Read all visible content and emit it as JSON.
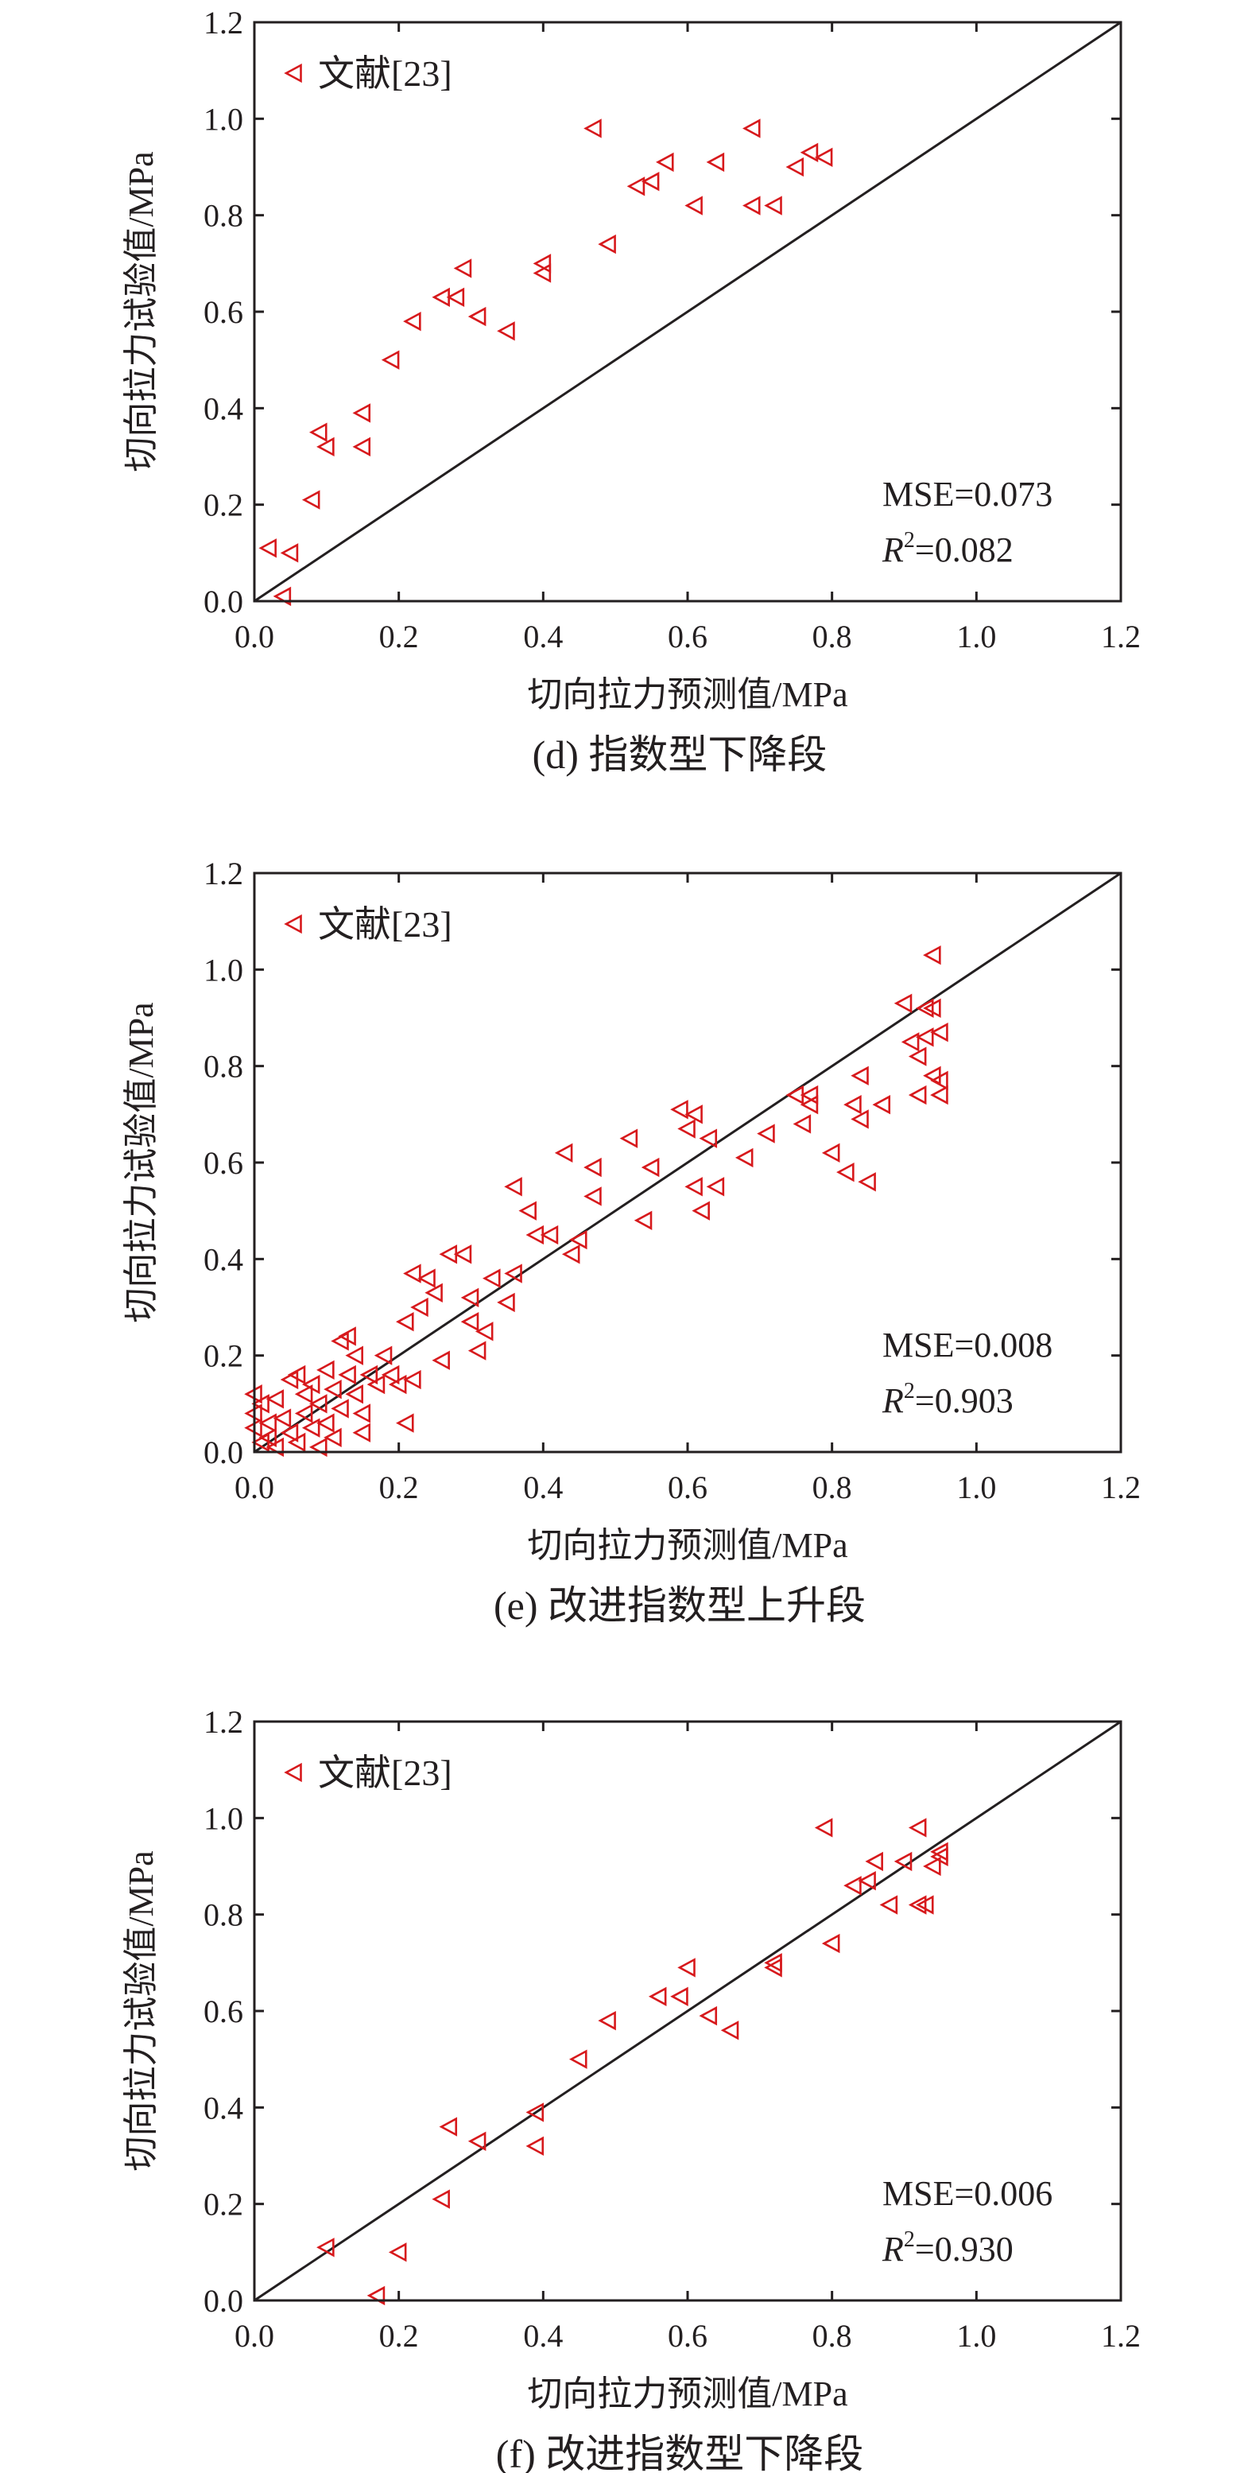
{
  "chart_data": [
    {
      "type": "scatter",
      "caption": "(d) 指数型下降段",
      "xlabel": "切向拉力预测值/MPa",
      "ylabel": "切向拉力试验值/MPa",
      "xlim": [
        0,
        1.2
      ],
      "ylim": [
        0,
        1.2
      ],
      "xticks": [
        "0.0",
        "0.2",
        "0.4",
        "0.6",
        "0.8",
        "1.0",
        "1.2"
      ],
      "yticks": [
        "0.0",
        "0.2",
        "0.4",
        "0.6",
        "0.8",
        "1.0",
        "1.2"
      ],
      "legend": {
        "label": "文献[23]",
        "position": "top-left"
      },
      "reference_line": "y = x",
      "stats": {
        "mse": "MSE=0.073",
        "r2_symbol": "R",
        "r2_sup": "2",
        "r2_value": "=0.082"
      },
      "series": [
        {
          "marker": "triangle-left",
          "color": "#d7191c",
          "points": [
            [
              0.02,
              0.11
            ],
            [
              0.04,
              0.01
            ],
            [
              0.05,
              0.1
            ],
            [
              0.08,
              0.21
            ],
            [
              0.09,
              0.35
            ],
            [
              0.1,
              0.32
            ],
            [
              0.15,
              0.32
            ],
            [
              0.15,
              0.39
            ],
            [
              0.19,
              0.5
            ],
            [
              0.22,
              0.58
            ],
            [
              0.26,
              0.63
            ],
            [
              0.28,
              0.63
            ],
            [
              0.29,
              0.69
            ],
            [
              0.31,
              0.59
            ],
            [
              0.35,
              0.56
            ],
            [
              0.4,
              0.68
            ],
            [
              0.4,
              0.7
            ],
            [
              0.47,
              0.98
            ],
            [
              0.49,
              0.74
            ],
            [
              0.53,
              0.86
            ],
            [
              0.55,
              0.87
            ],
            [
              0.57,
              0.91
            ],
            [
              0.61,
              0.82
            ],
            [
              0.64,
              0.91
            ],
            [
              0.69,
              0.82
            ],
            [
              0.69,
              0.98
            ],
            [
              0.72,
              0.82
            ],
            [
              0.75,
              0.9
            ],
            [
              0.77,
              0.93
            ],
            [
              0.79,
              0.92
            ]
          ]
        }
      ]
    },
    {
      "type": "scatter",
      "caption": "(e) 改进指数型上升段",
      "xlabel": "切向拉力预测值/MPa",
      "ylabel": "切向拉力试验值/MPa",
      "xlim": [
        0,
        1.2
      ],
      "ylim": [
        0,
        1.2
      ],
      "xticks": [
        "0.0",
        "0.2",
        "0.4",
        "0.6",
        "0.8",
        "1.0",
        "1.2"
      ],
      "yticks": [
        "0.0",
        "0.2",
        "0.4",
        "0.6",
        "0.8",
        "1.0",
        "1.2"
      ],
      "legend": {
        "label": "文献[23]",
        "position": "top-left"
      },
      "reference_line": "y = x",
      "stats": {
        "mse": "MSE=0.008",
        "r2_symbol": "R",
        "r2_sup": "2",
        "r2_value": "=0.903"
      },
      "series": [
        {
          "marker": "triangle-left",
          "color": "#d7191c",
          "points": [
            [
              0.0,
              0.12
            ],
            [
              0.0,
              0.08
            ],
            [
              0.0,
              0.05
            ],
            [
              0.01,
              0.02
            ],
            [
              0.01,
              0.1
            ],
            [
              0.02,
              0.06
            ],
            [
              0.02,
              0.03
            ],
            [
              0.03,
              0.11
            ],
            [
              0.03,
              0.01
            ],
            [
              0.04,
              0.07
            ],
            [
              0.05,
              0.04
            ],
            [
              0.05,
              0.15
            ],
            [
              0.06,
              0.16
            ],
            [
              0.06,
              0.02
            ],
            [
              0.07,
              0.08
            ],
            [
              0.07,
              0.12
            ],
            [
              0.08,
              0.05
            ],
            [
              0.08,
              0.14
            ],
            [
              0.09,
              0.1
            ],
            [
              0.09,
              0.01
            ],
            [
              0.1,
              0.17
            ],
            [
              0.1,
              0.06
            ],
            [
              0.11,
              0.03
            ],
            [
              0.11,
              0.13
            ],
            [
              0.12,
              0.09
            ],
            [
              0.12,
              0.23
            ],
            [
              0.13,
              0.24
            ],
            [
              0.13,
              0.16
            ],
            [
              0.14,
              0.2
            ],
            [
              0.14,
              0.12
            ],
            [
              0.15,
              0.04
            ],
            [
              0.15,
              0.08
            ],
            [
              0.16,
              0.16
            ],
            [
              0.17,
              0.14
            ],
            [
              0.18,
              0.2
            ],
            [
              0.19,
              0.16
            ],
            [
              0.2,
              0.14
            ],
            [
              0.21,
              0.27
            ],
            [
              0.21,
              0.06
            ],
            [
              0.22,
              0.37
            ],
            [
              0.22,
              0.15
            ],
            [
              0.23,
              0.3
            ],
            [
              0.24,
              0.36
            ],
            [
              0.25,
              0.33
            ],
            [
              0.26,
              0.19
            ],
            [
              0.27,
              0.41
            ],
            [
              0.29,
              0.41
            ],
            [
              0.3,
              0.27
            ],
            [
              0.3,
              0.32
            ],
            [
              0.31,
              0.21
            ],
            [
              0.32,
              0.25
            ],
            [
              0.33,
              0.36
            ],
            [
              0.35,
              0.31
            ],
            [
              0.36,
              0.37
            ],
            [
              0.36,
              0.55
            ],
            [
              0.38,
              0.5
            ],
            [
              0.39,
              0.45
            ],
            [
              0.41,
              0.45
            ],
            [
              0.43,
              0.62
            ],
            [
              0.44,
              0.41
            ],
            [
              0.45,
              0.44
            ],
            [
              0.47,
              0.53
            ],
            [
              0.47,
              0.59
            ],
            [
              0.52,
              0.65
            ],
            [
              0.54,
              0.48
            ],
            [
              0.55,
              0.59
            ],
            [
              0.59,
              0.71
            ],
            [
              0.6,
              0.67
            ],
            [
              0.61,
              0.55
            ],
            [
              0.61,
              0.7
            ],
            [
              0.62,
              0.5
            ],
            [
              0.63,
              0.65
            ],
            [
              0.64,
              0.55
            ],
            [
              0.68,
              0.61
            ],
            [
              0.71,
              0.66
            ],
            [
              0.75,
              0.74
            ],
            [
              0.76,
              0.68
            ],
            [
              0.77,
              0.72
            ],
            [
              0.77,
              0.74
            ],
            [
              0.8,
              0.62
            ],
            [
              0.82,
              0.58
            ],
            [
              0.83,
              0.72
            ],
            [
              0.84,
              0.69
            ],
            [
              0.84,
              0.78
            ],
            [
              0.85,
              0.56
            ],
            [
              0.87,
              0.72
            ],
            [
              0.9,
              0.93
            ],
            [
              0.91,
              0.85
            ],
            [
              0.92,
              0.74
            ],
            [
              0.92,
              0.82
            ],
            [
              0.93,
              0.86
            ],
            [
              0.93,
              0.92
            ],
            [
              0.94,
              0.92
            ],
            [
              0.94,
              1.03
            ],
            [
              0.94,
              0.78
            ],
            [
              0.95,
              0.87
            ],
            [
              0.95,
              0.74
            ],
            [
              0.95,
              0.77
            ]
          ]
        }
      ]
    },
    {
      "type": "scatter",
      "caption": "(f) 改进指数型下降段",
      "xlabel": "切向拉力预测值/MPa",
      "ylabel": "切向拉力试验值/MPa",
      "xlim": [
        0,
        1.2
      ],
      "ylim": [
        0,
        1.2
      ],
      "xticks": [
        "0.0",
        "0.2",
        "0.4",
        "0.6",
        "0.8",
        "1.0",
        "1.2"
      ],
      "yticks": [
        "0.0",
        "0.2",
        "0.4",
        "0.6",
        "0.8",
        "1.0",
        "1.2"
      ],
      "legend": {
        "label": "文献[23]",
        "position": "top-left"
      },
      "reference_line": "y = x",
      "stats": {
        "mse": "MSE=0.006",
        "r2_symbol": "R",
        "r2_sup": "2",
        "r2_value": "=0.930"
      },
      "series": [
        {
          "marker": "triangle-left",
          "color": "#d7191c",
          "points": [
            [
              0.1,
              0.11
            ],
            [
              0.17,
              0.01
            ],
            [
              0.2,
              0.1
            ],
            [
              0.26,
              0.21
            ],
            [
              0.27,
              0.36
            ],
            [
              0.31,
              0.33
            ],
            [
              0.39,
              0.32
            ],
            [
              0.39,
              0.39
            ],
            [
              0.45,
              0.5
            ],
            [
              0.49,
              0.58
            ],
            [
              0.56,
              0.63
            ],
            [
              0.59,
              0.63
            ],
            [
              0.6,
              0.69
            ],
            [
              0.63,
              0.59
            ],
            [
              0.66,
              0.56
            ],
            [
              0.72,
              0.69
            ],
            [
              0.72,
              0.7
            ],
            [
              0.79,
              0.98
            ],
            [
              0.8,
              0.74
            ],
            [
              0.83,
              0.86
            ],
            [
              0.85,
              0.87
            ],
            [
              0.86,
              0.91
            ],
            [
              0.88,
              0.82
            ],
            [
              0.9,
              0.91
            ],
            [
              0.92,
              0.82
            ],
            [
              0.92,
              0.98
            ],
            [
              0.93,
              0.82
            ],
            [
              0.94,
              0.9
            ],
            [
              0.95,
              0.93
            ],
            [
              0.95,
              0.92
            ]
          ]
        }
      ]
    }
  ]
}
